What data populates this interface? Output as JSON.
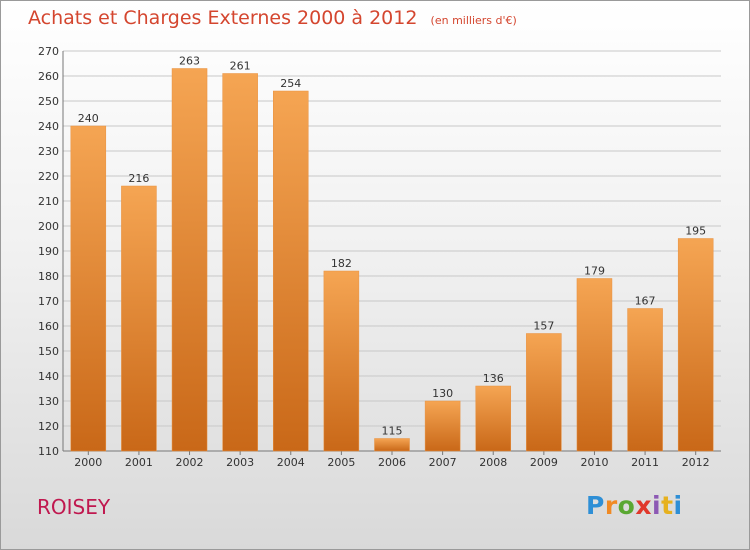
{
  "page": {
    "city": "ROISEY",
    "logo_text": "Proxiti"
  },
  "colors": {
    "title": "#d4462f",
    "city": "#c0184f",
    "bar_top": "#f5a553",
    "bar_bottom": "#c96818",
    "grid": "#c8c8c8"
  },
  "chart_data": {
    "type": "bar",
    "title": "Achats et Charges Externes 2000 à 2012",
    "subtitle": "(en milliers d'€)",
    "xlabel": "",
    "ylabel": "",
    "categories": [
      "2000",
      "2001",
      "2002",
      "2003",
      "2004",
      "2005",
      "2006",
      "2007",
      "2008",
      "2009",
      "2010",
      "2011",
      "2012"
    ],
    "values": [
      240,
      216,
      263,
      261,
      254,
      182,
      115,
      130,
      136,
      157,
      179,
      167,
      195
    ],
    "ylim": [
      110,
      270
    ],
    "yticks": [
      110,
      120,
      130,
      140,
      150,
      160,
      170,
      180,
      190,
      200,
      210,
      220,
      230,
      240,
      250,
      260,
      270
    ],
    "grid": true,
    "legend": "none"
  }
}
